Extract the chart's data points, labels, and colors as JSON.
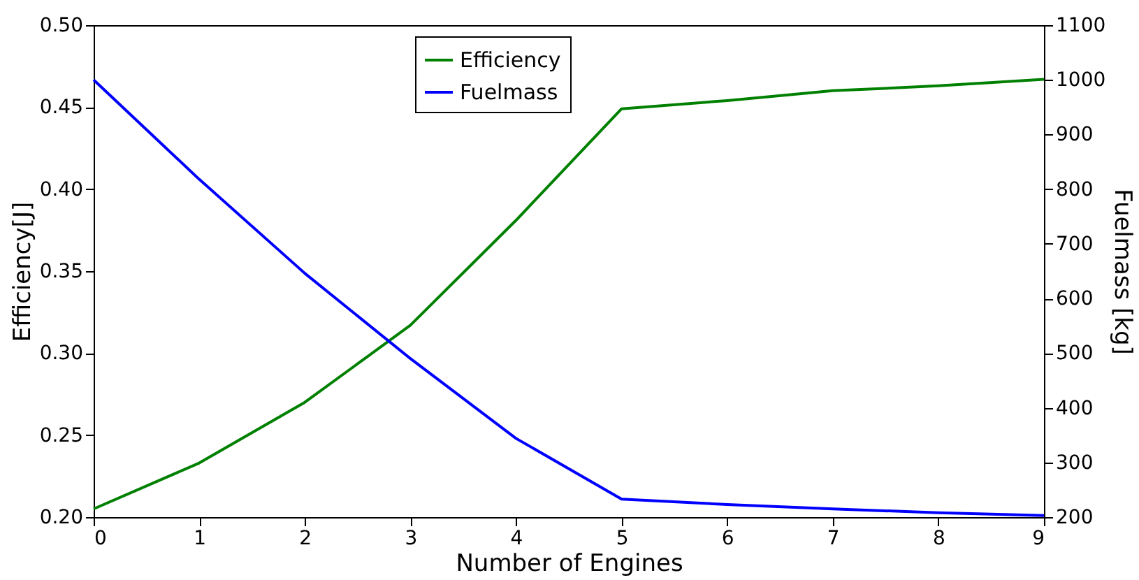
{
  "chart_data": {
    "type": "line",
    "xlabel": "Number of Engines",
    "ylabel": "Efficiency[J]",
    "y2label": "Fuelmass [kg]",
    "x": [
      0,
      1,
      2,
      3,
      4,
      5,
      6,
      7,
      8,
      9
    ],
    "series": [
      {
        "name": "Efficiency",
        "color": "#008000",
        "values": [
          0.205,
          0.233,
          0.27,
          0.317,
          0.381,
          0.449,
          0.454,
          0.46,
          0.463,
          0.467
        ]
      },
      {
        "name": "Fuelmass",
        "color": "#0000ff",
        "axis": "y2",
        "values": [
          1000,
          818,
          646,
          490,
          344,
          233,
          223,
          215,
          208,
          203
        ]
      }
    ],
    "xlim": [
      0,
      9
    ],
    "xticks": [
      0,
      1,
      2,
      3,
      4,
      5,
      6,
      7,
      8,
      9
    ],
    "ylim": [
      0.2,
      0.5
    ],
    "yticks": [
      {
        "value": 0.2,
        "label": "0.20"
      },
      {
        "value": 0.25,
        "label": "0.25"
      },
      {
        "value": 0.3,
        "label": "0.30"
      },
      {
        "value": 0.35,
        "label": "0.35"
      },
      {
        "value": 0.4,
        "label": "0.40"
      },
      {
        "value": 0.45,
        "label": "0.45"
      },
      {
        "value": 0.5,
        "label": "0.50"
      }
    ],
    "y2lim": [
      200,
      1100
    ],
    "y2ticks": [
      200,
      300,
      400,
      500,
      600,
      700,
      800,
      900,
      1000,
      1100
    ],
    "legend": "top",
    "grid": false,
    "marker": "none",
    "line_style": "solid"
  }
}
